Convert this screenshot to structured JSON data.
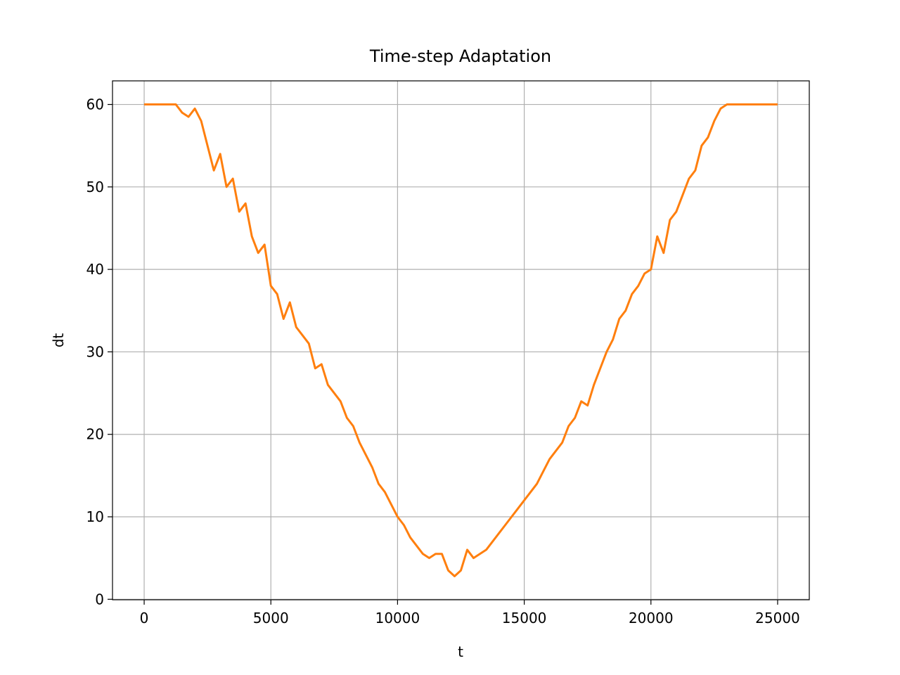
{
  "chart_data": {
    "type": "line",
    "title": "Time-step Adaptation",
    "x_label": "t",
    "y_label": "dt",
    "x": [
      0,
      250,
      500,
      750,
      1000,
      1250,
      1500,
      1750,
      2000,
      2250,
      2500,
      2750,
      3000,
      3250,
      3500,
      3750,
      4000,
      4250,
      4500,
      4750,
      5000,
      5250,
      5500,
      5750,
      6000,
      6250,
      6500,
      6750,
      7000,
      7250,
      7500,
      7750,
      8000,
      8250,
      8500,
      8750,
      9000,
      9250,
      9500,
      9750,
      10000,
      10250,
      10500,
      10750,
      11000,
      11250,
      11500,
      11750,
      12000,
      12250,
      12500,
      12750,
      13000,
      13250,
      13500,
      13750,
      14000,
      14250,
      14500,
      14750,
      15000,
      15250,
      15500,
      15750,
      16000,
      16250,
      16500,
      16750,
      17000,
      17250,
      17500,
      17750,
      18000,
      18250,
      18500,
      18750,
      19000,
      19250,
      19500,
      19750,
      20000,
      20250,
      20500,
      20750,
      21000,
      21250,
      21500,
      21750,
      22000,
      22250,
      22500,
      22750,
      23000,
      23250,
      23500,
      23750,
      24000,
      24250,
      24500,
      24750,
      25000
    ],
    "series": [
      {
        "name": "dt",
        "color": "#ff7f0e",
        "values": [
          60,
          60,
          60,
          60,
          60,
          60,
          59,
          58.5,
          59.5,
          58,
          55,
          52,
          54,
          50,
          51,
          47,
          48,
          44,
          42,
          43,
          38,
          37,
          34,
          36,
          33,
          32,
          31,
          28,
          28.5,
          26,
          25,
          24,
          22,
          21,
          19,
          17.5,
          16,
          14,
          13,
          11.5,
          10,
          9,
          7.5,
          6.5,
          5.5,
          5,
          5.5,
          5.5,
          3.5,
          2.8,
          3.5,
          6,
          5,
          5.5,
          6,
          7,
          8,
          9,
          10,
          11,
          12,
          13,
          14,
          15.5,
          17,
          18,
          19,
          21,
          22,
          24,
          23.5,
          26,
          28,
          30,
          31.5,
          34,
          35,
          37,
          38,
          39.5,
          40,
          44,
          42,
          46,
          47,
          49,
          51,
          52,
          55,
          56,
          58,
          59.5,
          60,
          60,
          60,
          60,
          60,
          60,
          60,
          60,
          60
        ]
      }
    ],
    "xlim": [
      -1250,
      26250
    ],
    "ylim": [
      -0.06,
      62.86
    ],
    "xticks": [
      0,
      5000,
      10000,
      15000,
      20000,
      25000
    ],
    "yticks": [
      0,
      10,
      20,
      30,
      40,
      50,
      60
    ],
    "grid": true
  }
}
